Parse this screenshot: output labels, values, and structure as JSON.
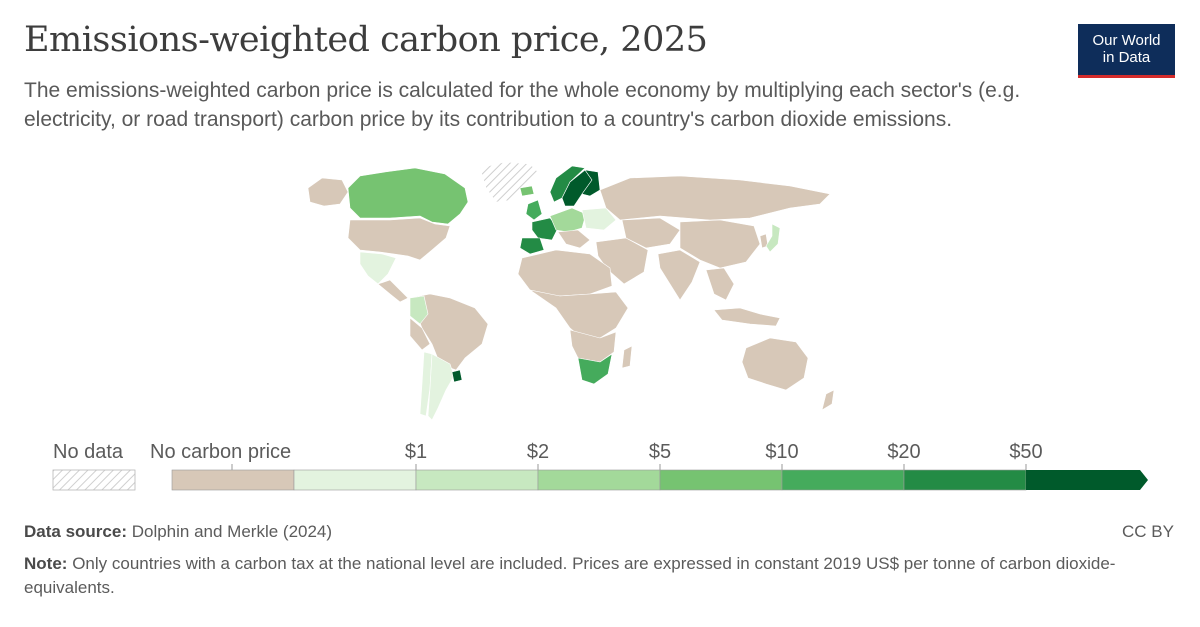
{
  "title": "Emissions-weighted carbon price, 2025",
  "subtitle": "The emissions-weighted carbon price is calculated for the whole economy by multiplying each sector's (e.g. electricity, or road transport) carbon price by its contribution to a country's carbon dioxide emissions.",
  "logo": {
    "line1": "Our World",
    "line2": "in Data"
  },
  "legend": {
    "no_data_label": "No data",
    "no_price_label": "No carbon price",
    "bins": [
      {
        "label": "$1"
      },
      {
        "label": "$2"
      },
      {
        "label": "$5"
      },
      {
        "label": "$10"
      },
      {
        "label": "$20"
      },
      {
        "label": "$50"
      }
    ],
    "colors": [
      "#d7c8b8",
      "#e3f3df",
      "#c7e8c0",
      "#a3d99a",
      "#76c371",
      "#45ab5c",
      "#238b45",
      "#005a2b"
    ]
  },
  "map_colors": {
    "land": "#d7c8b8",
    "pale": "#e3f3df",
    "light": "#c7e8c0",
    "mid": "#a3d99a",
    "green": "#76c371",
    "strong": "#45ab5c",
    "dark": "#238b45",
    "darkest": "#005a2b"
  },
  "footer": {
    "source_label": "Data source:",
    "source_text": "Dolphin and Merkle (2024)",
    "note_label": "Note:",
    "note_text": "Only countries with a carbon tax at the national level are included. Prices are expressed in constant 2019 US$ per tonne of carbon dioxide-equivalents.",
    "license": "CC BY"
  }
}
